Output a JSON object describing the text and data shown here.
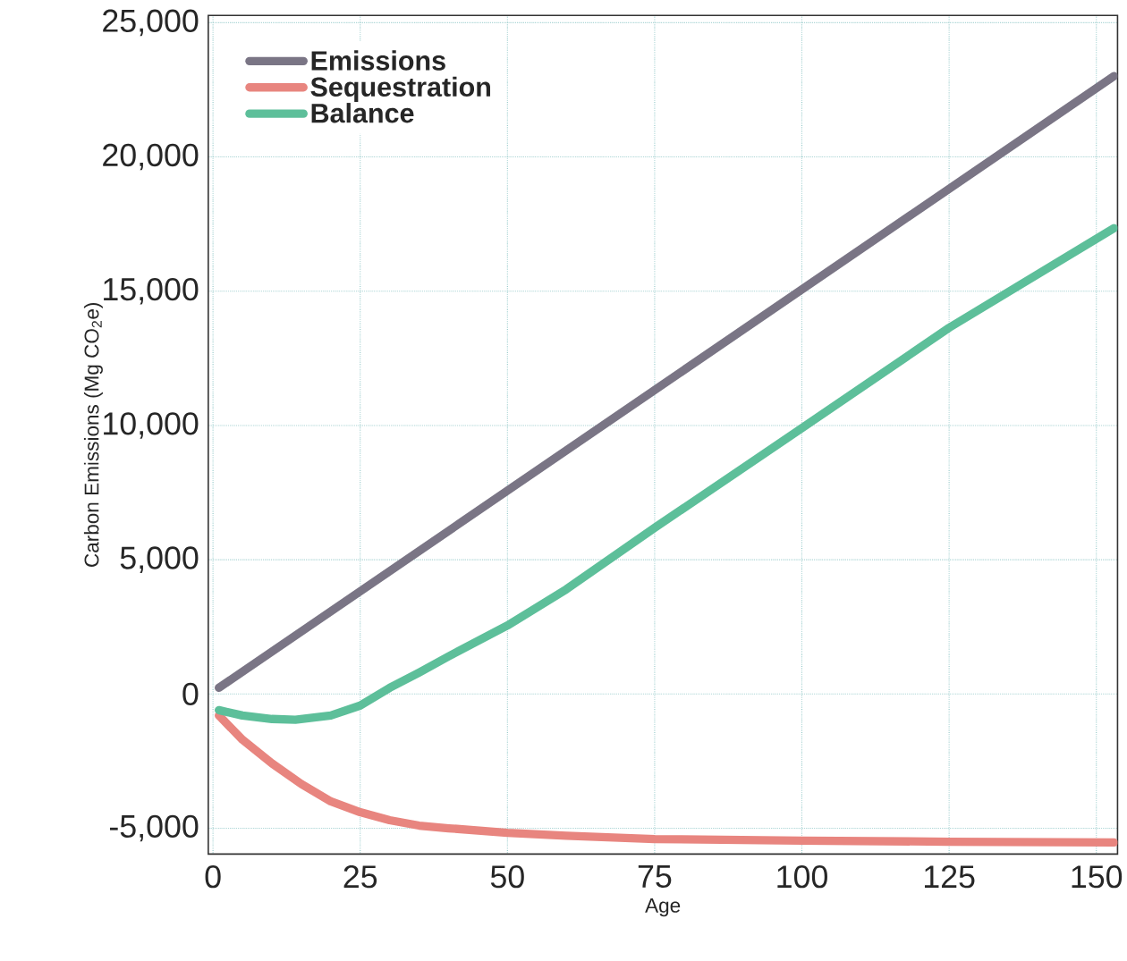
{
  "chart_data": {
    "type": "line",
    "xlabel": "Age",
    "ylabel": "Carbon Emissions (Mg CO$_{2}$e)",
    "xlim": [
      -0.8,
      153.6
    ],
    "ylim": [
      -5960,
      25270
    ],
    "xticks": [
      0,
      25,
      50,
      75,
      100,
      125,
      150
    ],
    "yticks": [
      {
        "value": -5000,
        "label": "-5,000"
      },
      0,
      {
        "value": 5000,
        "label": "5,000"
      },
      {
        "value": 10000,
        "label": "10,000"
      },
      {
        "value": 15000,
        "label": "15,000"
      },
      {
        "value": 20000,
        "label": "20,000"
      },
      {
        "value": 25000,
        "label": "25,000"
      }
    ],
    "grid": true,
    "legend": "top left",
    "marker": "none",
    "line_style": "solid",
    "series": [
      {
        "name": "Emissions",
        "color": "#7a7585",
        "x": [
          1,
          153
        ],
        "values": [
          230,
          23010
        ]
      },
      {
        "name": "Sequestration",
        "color": "#e8857f",
        "x": [
          1,
          5,
          10,
          15,
          20,
          25,
          30,
          35,
          40,
          50,
          60,
          75,
          100,
          125,
          153
        ],
        "values": [
          -800,
          -1700,
          -2580,
          -3350,
          -4000,
          -4400,
          -4700,
          -4900,
          -5000,
          -5170,
          -5280,
          -5400,
          -5460,
          -5500,
          -5530
        ]
      },
      {
        "name": "Balance",
        "color": "#5dbf9a",
        "x": [
          1,
          5,
          10,
          14,
          20,
          25,
          30,
          35,
          40,
          50,
          60,
          75,
          100,
          125,
          153
        ],
        "values": [
          -600,
          -800,
          -930,
          -960,
          -800,
          -430,
          230,
          800,
          1400,
          2550,
          3900,
          6190,
          9900,
          13640,
          17350
        ]
      }
    ]
  }
}
